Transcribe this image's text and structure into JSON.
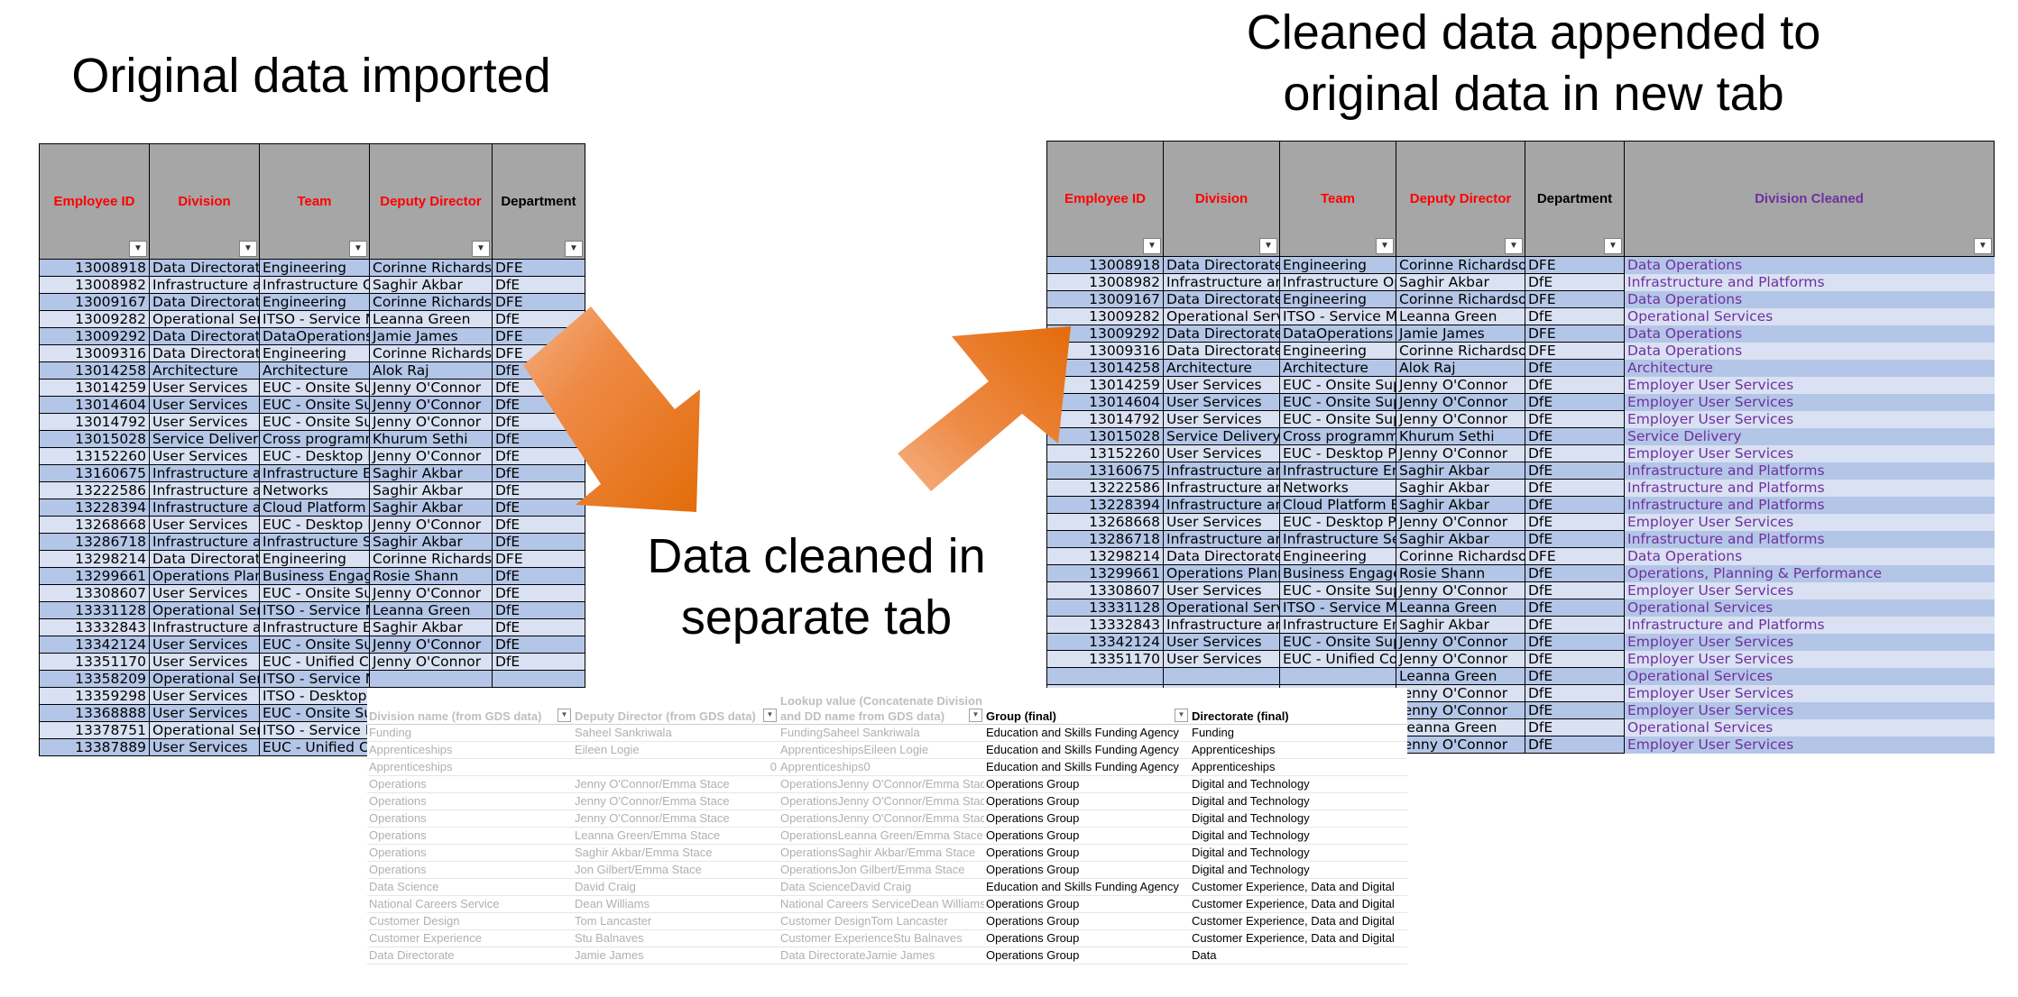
{
  "titles": {
    "original": "Original data imported",
    "appended_line1": "Cleaned data appended to",
    "appended_line2": "original data in new tab",
    "cleaned_line1": "Data cleaned in",
    "cleaned_line2": "separate tab"
  },
  "colors": {
    "header_bg": "#a6a6a6",
    "header_red": "#ff0000",
    "row_dark": "#b4c6e7",
    "row_light": "#d9e1f2",
    "cleaned_text": "#7030a0",
    "arrow": "#ed7d31"
  },
  "icons": {
    "filter": "filter-dropdown-icon",
    "arrows": "orange-arrow-icon"
  },
  "original_sheet": {
    "headers": [
      "Employee ID",
      "Division",
      "Team",
      "Deputy Director",
      "Department"
    ],
    "rows": [
      [
        "13008918",
        "Data Directorate",
        "Engineering",
        "Corinne Richardson",
        "DFE"
      ],
      [
        "13008982",
        "Infrastructure and Platforms",
        "Infrastructure Operations",
        "Saghir Akbar",
        "DfE"
      ],
      [
        "13009167",
        "Data Directorate",
        "Engineering",
        "Corinne Richardson",
        "DFE"
      ],
      [
        "13009282",
        "Operational Services",
        "ITSO - Service Management",
        "Leanna Green",
        "DfE"
      ],
      [
        "13009292",
        "Data Directorate",
        "DataOperations",
        "Jamie James",
        "DFE"
      ],
      [
        "13009316",
        "Data Directorate",
        "Engineering",
        "Corinne Richardson",
        "DFE"
      ],
      [
        "13014258",
        "Architecture",
        "Architecture",
        "Alok Raj",
        "DfE"
      ],
      [
        "13014259",
        "User Services",
        "EUC - Onsite Support",
        "Jenny O'Connor",
        "DfE"
      ],
      [
        "13014604",
        "User Services",
        "EUC - Onsite Support",
        "Jenny O'Connor",
        "DfE"
      ],
      [
        "13014792",
        "User Services",
        "EUC - Onsite Support",
        "Jenny O'Connor",
        "DfE"
      ],
      [
        "13015028",
        "Service Delivery Office",
        "Cross programme",
        "Khurum Sethi",
        "DfE"
      ],
      [
        "13152260",
        "User Services",
        "EUC - Desktop Products",
        "Jenny O'Connor",
        "DfE"
      ],
      [
        "13160675",
        "Infrastructure and Platforms",
        "Infrastructure Engineering",
        "Saghir Akbar",
        "DfE"
      ],
      [
        "13222586",
        "Infrastructure and Platforms",
        "Networks",
        "Saghir Akbar",
        "DfE"
      ],
      [
        "13228394",
        "Infrastructure and Platforms",
        "Cloud Platform Engineering",
        "Saghir Akbar",
        "DfE"
      ],
      [
        "13268668",
        "User Services",
        "EUC - Desktop Products",
        "Jenny O'Connor",
        "DfE"
      ],
      [
        "13286718",
        "Infrastructure and Platforms",
        "Infrastructure Security",
        "Saghir Akbar",
        "DfE"
      ],
      [
        "13298214",
        "Data Directorate",
        "Engineering",
        "Corinne Richardson",
        "DFE"
      ],
      [
        "13299661",
        "Operations Planning",
        "Business Engagement",
        "Rosie Shann",
        "DfE"
      ],
      [
        "13308607",
        "User Services",
        "EUC - Onsite Support",
        "Jenny O'Connor",
        "DfE"
      ],
      [
        "13331128",
        "Operational Services",
        "ITSO - Service Management",
        "Leanna Green",
        "DfE"
      ],
      [
        "13332843",
        "Infrastructure and Platforms",
        "Infrastructure Engineering",
        "Saghir Akbar",
        "DfE"
      ],
      [
        "13342124",
        "User Services",
        "EUC - Onsite Support",
        "Jenny O'Connor",
        "DfE"
      ],
      [
        "13351170",
        "User Services",
        "EUC - Unified Comms",
        "Jenny O'Connor",
        "DfE"
      ],
      [
        "13358209",
        "Operational Services",
        "ITSO - Service Management",
        "",
        ""
      ],
      [
        "13359298",
        "User Services",
        "ITSO - Desktop Products",
        "",
        ""
      ],
      [
        "13368888",
        "User Services",
        "EUC - Onsite Support",
        "",
        ""
      ],
      [
        "13378751",
        "Operational Services",
        "ITSO - Service Management",
        "",
        ""
      ],
      [
        "13387889",
        "User Services",
        "EUC - Unified Comms",
        "",
        ""
      ]
    ]
  },
  "appended_sheet": {
    "headers": [
      "Employee ID",
      "Division",
      "Team",
      "Deputy Director",
      "Department",
      "Division Cleaned"
    ],
    "rows": [
      [
        "13008918",
        "Data Directorate",
        "Engineering",
        "Corinne Richardson",
        "DFE",
        "Data Operations"
      ],
      [
        "13008982",
        "Infrastructure and Platforms",
        "Infrastructure Operations",
        "Saghir Akbar",
        "DfE",
        "Infrastructure and Platforms"
      ],
      [
        "13009167",
        "Data Directorate",
        "Engineering",
        "Corinne Richardson",
        "DFE",
        "Data Operations"
      ],
      [
        "13009282",
        "Operational Services",
        "ITSO - Service Management",
        "Leanna Green",
        "DfE",
        "Operational Services"
      ],
      [
        "13009292",
        "Data Directorate",
        "DataOperations",
        "Jamie James",
        "DFE",
        "Data Operations"
      ],
      [
        "13009316",
        "Data Directorate",
        "Engineering",
        "Corinne Richardson",
        "DFE",
        "Data Operations"
      ],
      [
        "13014258",
        "Architecture",
        "Architecture",
        "Alok Raj",
        "DfE",
        "Architecture"
      ],
      [
        "13014259",
        "User Services",
        "EUC - Onsite Support",
        "Jenny O'Connor",
        "DfE",
        "Employer User Services"
      ],
      [
        "13014604",
        "User Services",
        "EUC - Onsite Support",
        "Jenny O'Connor",
        "DfE",
        "Employer User Services"
      ],
      [
        "13014792",
        "User Services",
        "EUC - Onsite Support",
        "Jenny O'Connor",
        "DfE",
        "Employer User Services"
      ],
      [
        "13015028",
        "Service Delivery Office",
        "Cross programme",
        "Khurum Sethi",
        "DfE",
        "Service Delivery"
      ],
      [
        "13152260",
        "User Services",
        "EUC - Desktop Products",
        "Jenny O'Connor",
        "DfE",
        "Employer User Services"
      ],
      [
        "13160675",
        "Infrastructure and Platforms",
        "Infrastructure Engineering",
        "Saghir Akbar",
        "DfE",
        "Infrastructure and Platforms"
      ],
      [
        "13222586",
        "Infrastructure and Platforms",
        "Networks",
        "Saghir Akbar",
        "DfE",
        "Infrastructure and Platforms"
      ],
      [
        "13228394",
        "Infrastructure and Platforms",
        "Cloud Platform Engineering",
        "Saghir Akbar",
        "DfE",
        "Infrastructure and Platforms"
      ],
      [
        "13268668",
        "User Services",
        "EUC - Desktop Products",
        "Jenny O'Connor",
        "DfE",
        "Employer User Services"
      ],
      [
        "13286718",
        "Infrastructure and Platforms",
        "Infrastructure Security",
        "Saghir Akbar",
        "DfE",
        "Infrastructure and Platforms"
      ],
      [
        "13298214",
        "Data Directorate",
        "Engineering",
        "Corinne Richardson",
        "DFE",
        "Data Operations"
      ],
      [
        "13299661",
        "Operations Planning",
        "Business Engagement",
        "Rosie Shann",
        "DfE",
        "Operations, Planning & Performance"
      ],
      [
        "13308607",
        "User Services",
        "EUC - Onsite Support",
        "Jenny O'Connor",
        "DfE",
        "Employer User Services"
      ],
      [
        "13331128",
        "Operational Services",
        "ITSO - Service Management",
        "Leanna Green",
        "DfE",
        "Operational Services"
      ],
      [
        "13332843",
        "Infrastructure and Platforms",
        "Infrastructure Engineering",
        "Saghir Akbar",
        "DfE",
        "Infrastructure and Platforms"
      ],
      [
        "13342124",
        "User Services",
        "EUC - Onsite Support",
        "Jenny O'Connor",
        "DfE",
        "Employer User Services"
      ],
      [
        "13351170",
        "User Services",
        "EUC - Unified Comms",
        "Jenny O'Connor",
        "DfE",
        "Employer User Services"
      ],
      [
        "",
        "",
        "",
        "Leanna Green",
        "DfE",
        "Operational Services"
      ],
      [
        "",
        "",
        "",
        "Jenny O'Connor",
        "DfE",
        "Employer User Services"
      ],
      [
        "",
        "",
        "",
        "Jenny O'Connor",
        "DfE",
        "Employer User Services"
      ],
      [
        "",
        "",
        "",
        "Leanna Green",
        "DfE",
        "Operational Services"
      ],
      [
        "",
        "",
        "",
        "Jenny O'Connor",
        "DfE",
        "Employer User Services"
      ]
    ]
  },
  "lookup_sheet": {
    "headers": [
      "Division name (from GDS data)",
      "Deputy Director (from GDS data)",
      "Lookup value (Concatenate Division and DD name from GDS data)",
      "Group (final)",
      "Directorate (final)"
    ],
    "rows": [
      [
        "Funding",
        "Saheel Sankriwala",
        "FundingSaheel Sankriwala",
        "Education and Skills Funding Agency",
        "Funding"
      ],
      [
        "Apprenticeships",
        "Eileen Logie",
        "ApprenticeshipsEileen Logie",
        "Education and Skills Funding Agency",
        "Apprenticeships"
      ],
      [
        "Apprenticeships",
        "0",
        "Apprenticeships0",
        "Education and Skills Funding Agency",
        "Apprenticeships"
      ],
      [
        "Operations",
        "Jenny O'Connor/Emma Stace",
        "OperationsJenny O'Connor/Emma Stace",
        "Operations Group",
        "Digital and Technology"
      ],
      [
        "Operations",
        "Jenny O'Connor/Emma Stace",
        "OperationsJenny O'Connor/Emma Stace",
        "Operations Group",
        "Digital and Technology"
      ],
      [
        "Operations",
        "Jenny O'Connor/Emma Stace",
        "OperationsJenny O'Connor/Emma Stace",
        "Operations Group",
        "Digital and Technology"
      ],
      [
        "Operations",
        "Leanna Green/Emma Stace",
        "OperationsLeanna Green/Emma Stace",
        "Operations Group",
        "Digital and Technology"
      ],
      [
        "Operations",
        "Saghir Akbar/Emma Stace",
        "OperationsSaghir Akbar/Emma Stace",
        "Operations Group",
        "Digital and Technology"
      ],
      [
        "Operations",
        "Jon Gilbert/Emma Stace",
        "OperationsJon Gilbert/Emma Stace",
        "Operations Group",
        "Digital and Technology"
      ],
      [
        "Data Science",
        "David Craig",
        "Data ScienceDavid Craig",
        "Education and Skills Funding Agency",
        "Customer Experience, Data and Digital"
      ],
      [
        "National Careers Service",
        "Dean Williams",
        "National Careers ServiceDean Williams",
        "Operations Group",
        "Customer Experience, Data and Digital"
      ],
      [
        "Customer Design",
        "Tom Lancaster",
        "Customer DesignTom Lancaster",
        "Operations Group",
        "Customer Experience, Data and Digital"
      ],
      [
        "Customer Experience",
        "Stu Balnaves",
        "Customer ExperienceStu Balnaves",
        "Operations Group",
        "Customer Experience, Data and Digital"
      ],
      [
        "Data Directorate",
        "Jamie James",
        "Data DirectorateJamie James",
        "Operations Group",
        "Data"
      ]
    ]
  }
}
